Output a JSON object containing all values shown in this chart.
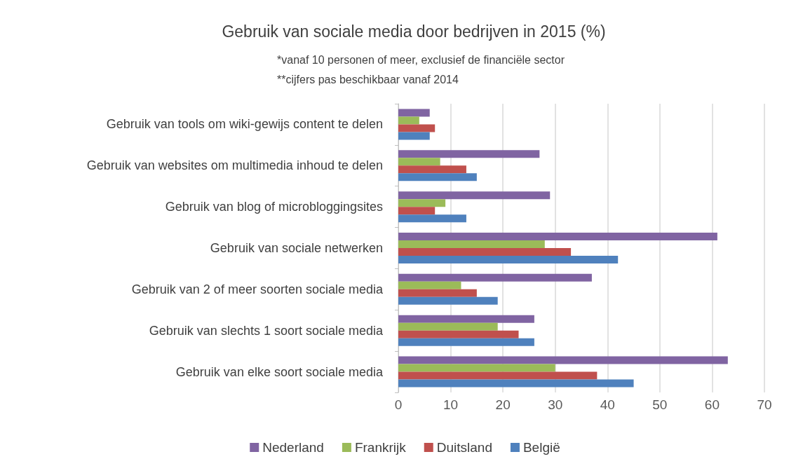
{
  "chart_data": {
    "type": "bar",
    "orientation": "horizontal",
    "title": "Gebruik van sociale media door bedrijven in 2015 (%)",
    "subtitle": "*vanaf 10 personen of meer, exclusief de financiële sector\n**cijfers pas beschikbaar vanaf 2014",
    "categories": [
      "Gebruik van tools om wiki-gewijs content te delen",
      "Gebruik van websites om multimedia inhoud te delen",
      "Gebruik van blog of microbloggingsites",
      "Gebruik van sociale netwerken",
      "Gebruik van 2 of meer soorten sociale media",
      "Gebruik van slechts 1 soort sociale media",
      "Gebruik van elke soort sociale media"
    ],
    "series": [
      {
        "name": "Nederland",
        "color": "#8064a2",
        "values": [
          6,
          27,
          29,
          61,
          37,
          26,
          63
        ]
      },
      {
        "name": "Frankrijk",
        "color": "#9bbb59",
        "values": [
          4,
          8,
          9,
          28,
          12,
          19,
          30
        ]
      },
      {
        "name": "Duitsland",
        "color": "#c0504d",
        "values": [
          7,
          13,
          7,
          33,
          15,
          23,
          38
        ]
      },
      {
        "name": "België",
        "color": "#4f81bd",
        "values": [
          6,
          15,
          13,
          42,
          19,
          26,
          45
        ]
      }
    ],
    "xlim": [
      0,
      70
    ],
    "xticks": [
      0,
      10,
      20,
      30,
      40,
      50,
      60,
      70
    ],
    "grid": "x",
    "legend": "bottom"
  }
}
